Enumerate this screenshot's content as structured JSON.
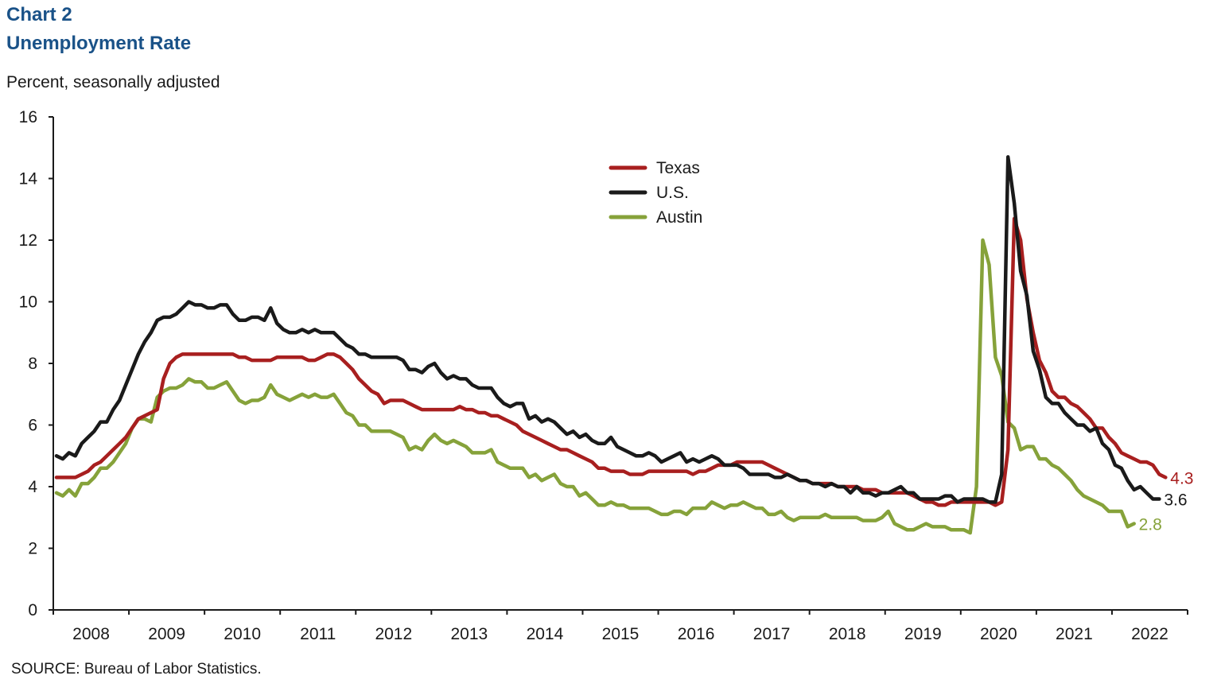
{
  "header": {
    "chart_number": "Chart 2",
    "title": "Unemployment Rate",
    "units": "Percent, seasonally adjusted"
  },
  "source": "SOURCE: Bureau  of Labor Statistics.",
  "chart_data": {
    "type": "line",
    "title": "Unemployment Rate",
    "ylabel": "Percent, seasonally adjusted",
    "xlabel": "",
    "ylim": [
      0,
      16
    ],
    "yticks": [
      0,
      2,
      4,
      6,
      8,
      10,
      12,
      14,
      16
    ],
    "x_start": "2008-01",
    "x_end": "2022-12",
    "frequency": "monthly",
    "xtick_labels": [
      "2008",
      "2009",
      "2010",
      "2011",
      "2012",
      "2013",
      "2014",
      "2015",
      "2016",
      "2017",
      "2018",
      "2019",
      "2020",
      "2021",
      "2022"
    ],
    "grid": false,
    "legend": {
      "placement": "top-center",
      "entries": [
        "Texas",
        "U.S.",
        "Austin"
      ]
    },
    "series": [
      {
        "name": "Texas",
        "color": "#a81f1f",
        "end_label": "4.3",
        "values": [
          4.3,
          4.3,
          4.3,
          4.3,
          4.4,
          4.5,
          4.7,
          4.8,
          5.0,
          5.2,
          5.4,
          5.6,
          5.9,
          6.2,
          6.3,
          6.4,
          6.5,
          7.5,
          8.0,
          8.2,
          8.3,
          8.3,
          8.3,
          8.3,
          8.3,
          8.3,
          8.3,
          8.3,
          8.3,
          8.2,
          8.2,
          8.1,
          8.1,
          8.1,
          8.1,
          8.2,
          8.2,
          8.2,
          8.2,
          8.2,
          8.1,
          8.1,
          8.2,
          8.3,
          8.3,
          8.2,
          8.0,
          7.8,
          7.5,
          7.3,
          7.1,
          7.0,
          6.7,
          6.8,
          6.8,
          6.8,
          6.7,
          6.6,
          6.5,
          6.5,
          6.5,
          6.5,
          6.5,
          6.5,
          6.6,
          6.5,
          6.5,
          6.4,
          6.4,
          6.3,
          6.3,
          6.2,
          6.1,
          6.0,
          5.8,
          5.7,
          5.6,
          5.5,
          5.4,
          5.3,
          5.2,
          5.2,
          5.1,
          5.0,
          4.9,
          4.8,
          4.6,
          4.6,
          4.5,
          4.5,
          4.5,
          4.4,
          4.4,
          4.4,
          4.5,
          4.5,
          4.5,
          4.5,
          4.5,
          4.5,
          4.5,
          4.4,
          4.5,
          4.5,
          4.6,
          4.7,
          4.7,
          4.7,
          4.8,
          4.8,
          4.8,
          4.8,
          4.8,
          4.7,
          4.6,
          4.5,
          4.4,
          4.3,
          4.2,
          4.2,
          4.1,
          4.1,
          4.1,
          4.1,
          4.0,
          4.0,
          4.0,
          4.0,
          3.9,
          3.9,
          3.9,
          3.8,
          3.8,
          3.8,
          3.8,
          3.8,
          3.7,
          3.6,
          3.5,
          3.5,
          3.4,
          3.4,
          3.5,
          3.5,
          3.5,
          3.5,
          3.5,
          3.5,
          3.5,
          3.4,
          3.5,
          5.2,
          12.7,
          12.0,
          10.1,
          9.0,
          8.1,
          7.7,
          7.1,
          6.9,
          6.9,
          6.7,
          6.6,
          6.4,
          6.2,
          5.9,
          5.9,
          5.6,
          5.4,
          5.1,
          5.0,
          4.9,
          4.8,
          4.8,
          4.7,
          4.4,
          4.3
        ]
      },
      {
        "name": "U.S.",
        "color": "#1a1a1a",
        "end_label": "3.6",
        "values": [
          5.0,
          4.9,
          5.1,
          5.0,
          5.4,
          5.6,
          5.8,
          6.1,
          6.1,
          6.5,
          6.8,
          7.3,
          7.8,
          8.3,
          8.7,
          9.0,
          9.4,
          9.5,
          9.5,
          9.6,
          9.8,
          10.0,
          9.9,
          9.9,
          9.8,
          9.8,
          9.9,
          9.9,
          9.6,
          9.4,
          9.4,
          9.5,
          9.5,
          9.4,
          9.8,
          9.3,
          9.1,
          9.0,
          9.0,
          9.1,
          9.0,
          9.1,
          9.0,
          9.0,
          9.0,
          8.8,
          8.6,
          8.5,
          8.3,
          8.3,
          8.2,
          8.2,
          8.2,
          8.2,
          8.2,
          8.1,
          7.8,
          7.8,
          7.7,
          7.9,
          8.0,
          7.7,
          7.5,
          7.6,
          7.5,
          7.5,
          7.3,
          7.2,
          7.2,
          7.2,
          6.9,
          6.7,
          6.6,
          6.7,
          6.7,
          6.2,
          6.3,
          6.1,
          6.2,
          6.1,
          5.9,
          5.7,
          5.8,
          5.6,
          5.7,
          5.5,
          5.4,
          5.4,
          5.6,
          5.3,
          5.2,
          5.1,
          5.0,
          5.0,
          5.1,
          5.0,
          4.8,
          4.9,
          5.0,
          5.1,
          4.8,
          4.9,
          4.8,
          4.9,
          5.0,
          4.9,
          4.7,
          4.7,
          4.7,
          4.6,
          4.4,
          4.4,
          4.4,
          4.4,
          4.3,
          4.3,
          4.4,
          4.3,
          4.2,
          4.2,
          4.1,
          4.1,
          4.0,
          4.1,
          4.0,
          4.0,
          3.8,
          4.0,
          3.8,
          3.8,
          3.7,
          3.8,
          3.8,
          3.9,
          4.0,
          3.8,
          3.8,
          3.6,
          3.6,
          3.6,
          3.6,
          3.7,
          3.7,
          3.5,
          3.6,
          3.6,
          3.6,
          3.6,
          3.5,
          3.5,
          4.4,
          14.7,
          13.2,
          11.0,
          10.2,
          8.4,
          7.8,
          6.9,
          6.7,
          6.7,
          6.4,
          6.2,
          6.0,
          6.0,
          5.8,
          5.9,
          5.4,
          5.2,
          4.7,
          4.6,
          4.2,
          3.9,
          4.0,
          3.8,
          3.6,
          3.6
        ]
      },
      {
        "name": "Austin",
        "color": "#86a23a",
        "end_label": "2.8",
        "values": [
          3.8,
          3.7,
          3.9,
          3.7,
          4.1,
          4.1,
          4.3,
          4.6,
          4.6,
          4.8,
          5.1,
          5.4,
          5.9,
          6.2,
          6.2,
          6.1,
          6.9,
          7.1,
          7.2,
          7.2,
          7.3,
          7.5,
          7.4,
          7.4,
          7.2,
          7.2,
          7.3,
          7.4,
          7.1,
          6.8,
          6.7,
          6.8,
          6.8,
          6.9,
          7.3,
          7.0,
          6.9,
          6.8,
          6.9,
          7.0,
          6.9,
          7.0,
          6.9,
          6.9,
          7.0,
          6.7,
          6.4,
          6.3,
          6.0,
          6.0,
          5.8,
          5.8,
          5.8,
          5.8,
          5.7,
          5.6,
          5.2,
          5.3,
          5.2,
          5.5,
          5.7,
          5.5,
          5.4,
          5.5,
          5.4,
          5.3,
          5.1,
          5.1,
          5.1,
          5.2,
          4.8,
          4.7,
          4.6,
          4.6,
          4.6,
          4.3,
          4.4,
          4.2,
          4.3,
          4.4,
          4.1,
          4.0,
          4.0,
          3.7,
          3.8,
          3.6,
          3.4,
          3.4,
          3.5,
          3.4,
          3.4,
          3.3,
          3.3,
          3.3,
          3.3,
          3.2,
          3.1,
          3.1,
          3.2,
          3.2,
          3.1,
          3.3,
          3.3,
          3.3,
          3.5,
          3.4,
          3.3,
          3.4,
          3.4,
          3.5,
          3.4,
          3.3,
          3.3,
          3.1,
          3.1,
          3.2,
          3.0,
          2.9,
          3.0,
          3.0,
          3.0,
          3.0,
          3.1,
          3.0,
          3.0,
          3.0,
          3.0,
          3.0,
          2.9,
          2.9,
          2.9,
          3.0,
          3.2,
          2.8,
          2.7,
          2.6,
          2.6,
          2.7,
          2.8,
          2.7,
          2.7,
          2.7,
          2.6,
          2.6,
          2.6,
          2.5,
          4.0,
          12.0,
          11.2,
          8.2,
          7.6,
          6.1,
          5.9,
          5.2,
          5.3,
          5.3,
          4.9,
          4.9,
          4.7,
          4.6,
          4.4,
          4.2,
          3.9,
          3.7,
          3.6,
          3.5,
          3.4,
          3.2,
          3.2,
          3.2,
          2.7,
          2.8
        ]
      }
    ]
  }
}
